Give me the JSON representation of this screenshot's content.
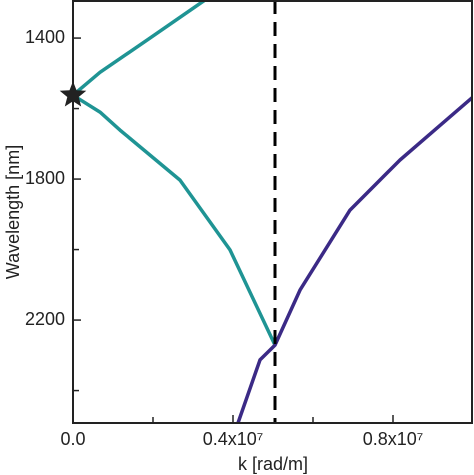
{
  "chart_data": {
    "type": "line",
    "xlabel": "k [rad/m]",
    "ylabel": "Wavelength [nm]",
    "xlim": [
      0,
      10000000
    ],
    "ylim": [
      1292,
      2492
    ],
    "y_reversed": true,
    "xticks": [
      {
        "value": 0,
        "label": "0.0"
      },
      {
        "value": 4000000,
        "label": "0.4x10⁷"
      },
      {
        "value": 8000000,
        "label": "0.8x10⁷"
      }
    ],
    "xminorticks": [
      2000000,
      6000000
    ],
    "yticks": [
      1400,
      1800,
      2200
    ],
    "yminorticks": [
      1600,
      2000,
      2400
    ],
    "vline": {
      "x": 5050000,
      "color": "#000000"
    },
    "marker": {
      "x": 0,
      "y": 1562,
      "color": "#222222"
    },
    "series": [
      {
        "color": "#1f9494",
        "x": [
          0,
          675000,
          1925000,
          3300000
        ],
        "values": [
          1562,
          1497,
          1400,
          1292
        ]
      },
      {
        "color": "#1f9494",
        "x": [
          0,
          675000,
          1175000,
          2675000,
          3925000,
          5050000
        ],
        "values": [
          1562,
          1610,
          1661,
          1803,
          2001,
          2271
        ]
      },
      {
        "color": "#3b2a86",
        "x": [
          4125000,
          4675000,
          5050000,
          5675000,
          6925000,
          8175000,
          10000000
        ],
        "values": [
          2492,
          2313,
          2271,
          2115,
          1888,
          1746,
          1567
        ]
      }
    ]
  }
}
